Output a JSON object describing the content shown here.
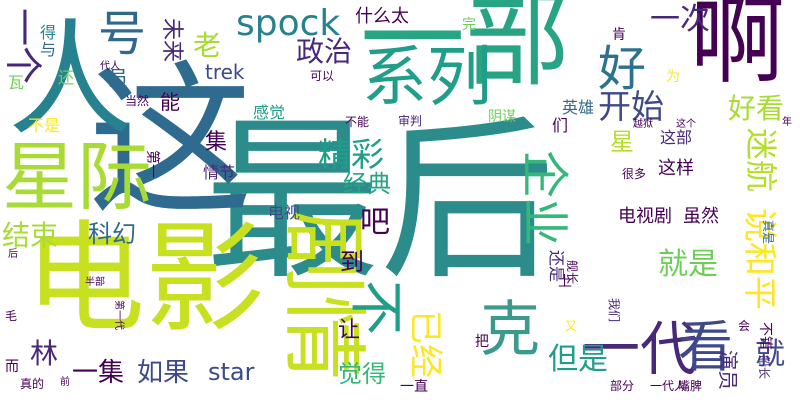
{
  "palette": {
    "background": "#ffffff",
    "colors": [
      "#440154",
      "#482878",
      "#3e4989",
      "#31688e",
      "#26828e",
      "#1f9e89",
      "#35b779",
      "#6ece58",
      "#b5de2b",
      "#fde725"
    ]
  },
  "words": [
    {
      "text": "最后",
      "weight": 100,
      "color": "#2c8c8c",
      "orientation": "horizontal"
    },
    {
      "text": "这",
      "weight": 95,
      "color": "#2f6b8f",
      "orientation": "horizontal"
    },
    {
      "text": "人",
      "weight": 90,
      "color": "#26828e",
      "orientation": "horizontal"
    },
    {
      "text": "电影",
      "weight": 85,
      "color": "#c7e020",
      "orientation": "horizontal"
    },
    {
      "text": "一部",
      "weight": 80,
      "color": "#26a484",
      "orientation": "horizontal"
    },
    {
      "text": "啊",
      "weight": 75,
      "color": "#440154",
      "orientation": "horizontal"
    },
    {
      "text": "星际",
      "weight": 70,
      "color": "#a8db34",
      "orientation": "horizontal"
    },
    {
      "text": "剧情",
      "weight": 68,
      "color": "#c7e020",
      "orientation": "vertical"
    },
    {
      "text": "系列",
      "weight": 62,
      "color": "#1f9e89",
      "orientation": "horizontal"
    },
    {
      "text": "一代",
      "weight": 56,
      "color": "#482878",
      "orientation": "horizontal"
    },
    {
      "text": "克",
      "weight": 55,
      "color": "#3b9a8c",
      "orientation": "horizontal"
    },
    {
      "text": "看",
      "weight": 52,
      "color": "#3e4989",
      "orientation": "horizontal"
    },
    {
      "text": "不",
      "weight": 50,
      "color": "#1f9e89",
      "orientation": "vertical"
    },
    {
      "text": "好",
      "weight": 48,
      "color": "#2c728e",
      "orientation": "horizontal"
    },
    {
      "text": "号",
      "weight": 46,
      "color": "#31688e",
      "orientation": "horizontal"
    },
    {
      "text": "企业",
      "weight": 44,
      "color": "#35b779",
      "orientation": "vertical"
    },
    {
      "text": "一个",
      "weight": 42,
      "color": "#482878",
      "orientation": "vertical"
    },
    {
      "text": "spock",
      "weight": 40,
      "color": "#26828e",
      "orientation": "horizontal"
    },
    {
      "text": "说和平",
      "weight": 38,
      "color": "#fde725",
      "orientation": "vertical"
    },
    {
      "text": "开始",
      "weight": 36,
      "color": "#3e4989",
      "orientation": "horizontal"
    },
    {
      "text": "已经",
      "weight": 36,
      "color": "#fde725",
      "orientation": "vertical"
    },
    {
      "text": "精彩",
      "weight": 34,
      "color": "#1f9e89",
      "orientation": "horizontal"
    },
    {
      "text": "就是",
      "weight": 34,
      "color": "#6ece58",
      "orientation": "horizontal"
    },
    {
      "text": "政治",
      "weight": 32,
      "color": "#482878",
      "orientation": "horizontal"
    },
    {
      "text": "结束",
      "weight": 32,
      "color": "#a8db34",
      "orientation": "horizontal"
    },
    {
      "text": "老",
      "weight": 32,
      "color": "#a8db34",
      "orientation": "horizontal"
    },
    {
      "text": "迷航",
      "weight": 32,
      "color": "#b5de2b",
      "orientation": "vertical"
    },
    {
      "text": "一次",
      "weight": 30,
      "color": "#482878",
      "orientation": "horizontal"
    },
    {
      "text": "好看",
      "weight": 30,
      "color": "#a8db34",
      "orientation": "horizontal"
    },
    {
      "text": "但是",
      "weight": 30,
      "color": "#1f9e89",
      "orientation": "horizontal"
    },
    {
      "text": "就",
      "weight": 30,
      "color": "#3e4989",
      "orientation": "horizontal"
    },
    {
      "text": "吧",
      "weight": 28,
      "color": "#440154",
      "orientation": "horizontal"
    },
    {
      "text": "林",
      "weight": 28,
      "color": "#482878",
      "orientation": "horizontal"
    },
    {
      "text": "科幻",
      "weight": 26,
      "color": "#31688e",
      "orientation": "horizontal"
    },
    {
      "text": "经典",
      "weight": 26,
      "color": "#26a484",
      "orientation": "horizontal"
    },
    {
      "text": "一集",
      "weight": 26,
      "color": "#440154",
      "orientation": "horizontal"
    },
    {
      "text": "如果",
      "weight": 26,
      "color": "#3e4989",
      "orientation": "horizontal"
    },
    {
      "text": "star",
      "weight": 26,
      "color": "#3e4989",
      "orientation": "horizontal"
    },
    {
      "text": "觉得",
      "weight": 26,
      "color": "#35b779",
      "orientation": "horizontal"
    },
    {
      "text": "星",
      "weight": 24,
      "color": "#b5de2b",
      "orientation": "horizontal"
    },
    {
      "text": "到",
      "weight": 24,
      "color": "#440154",
      "orientation": "horizontal"
    },
    {
      "text": "集",
      "weight": 24,
      "color": "#440154",
      "orientation": "horizontal"
    },
    {
      "text": "让",
      "weight": 22,
      "color": "#440154",
      "orientation": "horizontal"
    },
    {
      "text": "员",
      "weight": 22,
      "color": "#31688e",
      "orientation": "horizontal"
    },
    {
      "text": "能",
      "weight": 22,
      "color": "#440154",
      "orientation": "horizontal"
    },
    {
      "text": "什么太",
      "weight": 20,
      "color": "#440154",
      "orientation": "horizontal"
    },
    {
      "text": "trek",
      "weight": 20,
      "color": "#3e4989",
      "orientation": "horizontal"
    },
    {
      "text": "未来",
      "weight": 20,
      "color": "#482878",
      "orientation": "vertical"
    },
    {
      "text": "演员",
      "weight": 20,
      "color": "#482878",
      "orientation": "vertical"
    },
    {
      "text": "电视剧",
      "weight": 18,
      "color": "#440154",
      "orientation": "horizontal"
    },
    {
      "text": "虽然",
      "weight": 18,
      "color": "#440154",
      "orientation": "horizontal"
    },
    {
      "text": "这样",
      "weight": 18,
      "color": "#440154",
      "orientation": "horizontal"
    },
    {
      "text": "不是",
      "weight": 16,
      "color": "#fde725",
      "orientation": "horizontal"
    },
    {
      "text": "感觉",
      "weight": 16,
      "color": "#1f9e89",
      "orientation": "horizontal"
    },
    {
      "text": "英雄",
      "weight": 16,
      "color": "#31688e",
      "orientation": "horizontal"
    },
    {
      "text": "情节",
      "weight": 16,
      "color": "#482878",
      "orientation": "horizontal"
    },
    {
      "text": "电视",
      "weight": 16,
      "color": "#3e4989",
      "orientation": "horizontal"
    },
    {
      "text": "这部",
      "weight": 16,
      "color": "#482878",
      "orientation": "horizontal"
    },
    {
      "text": "为",
      "weight": 16,
      "color": "#fde725",
      "orientation": "horizontal"
    },
    {
      "text": "完",
      "weight": 16,
      "color": "#6ece58",
      "orientation": "horizontal"
    },
    {
      "text": "得",
      "weight": 16,
      "color": "#26828e",
      "orientation": "horizontal"
    },
    {
      "text": "与",
      "weight": 16,
      "color": "#31688e",
      "orientation": "horizontal"
    },
    {
      "text": "还",
      "weight": 16,
      "color": "#6ece58",
      "orientation": "horizontal"
    },
    {
      "text": "瓦",
      "weight": 16,
      "color": "#6ece58",
      "orientation": "horizontal"
    },
    {
      "text": "们",
      "weight": 16,
      "color": "#440154",
      "orientation": "horizontal"
    },
    {
      "text": "还是",
      "weight": 16,
      "color": "#482878",
      "orientation": "vertical"
    },
    {
      "text": "上",
      "weight": 16,
      "color": "#440154",
      "orientation": "horizontal"
    },
    {
      "text": "把",
      "weight": 16,
      "color": "#440154",
      "orientation": "horizontal"
    },
    {
      "text": "一直",
      "weight": 16,
      "color": "#440154",
      "orientation": "horizontal"
    },
    {
      "text": "而",
      "weight": 16,
      "color": "#440154",
      "orientation": "horizontal"
    },
    {
      "text": "不错",
      "weight": 16,
      "color": "#440154",
      "orientation": "vertical"
    },
    {
      "text": "第一",
      "weight": 16,
      "color": "#440154",
      "orientation": "vertical"
    },
    {
      "text": "肯",
      "weight": 16,
      "color": "#440154",
      "orientation": "horizontal"
    },
    {
      "text": "阴谋",
      "weight": 14,
      "color": "#6ece58",
      "orientation": "horizontal"
    },
    {
      "text": "审判",
      "weight": 12,
      "color": "#482878",
      "orientation": "horizontal"
    },
    {
      "text": "不能",
      "weight": 12,
      "color": "#440154",
      "orientation": "horizontal"
    },
    {
      "text": "很多",
      "weight": 12,
      "color": "#440154",
      "orientation": "horizontal"
    },
    {
      "text": "可以",
      "weight": 12,
      "color": "#440154",
      "orientation": "horizontal"
    },
    {
      "text": "当然",
      "weight": 12,
      "color": "#440154",
      "orientation": "horizontal"
    },
    {
      "text": "真是",
      "weight": 12,
      "color": "#31688e",
      "orientation": "vertical"
    },
    {
      "text": "又",
      "weight": 12,
      "color": "#fde725",
      "orientation": "horizontal"
    },
    {
      "text": "我们",
      "weight": 12,
      "color": "#482878",
      "orientation": "vertical"
    },
    {
      "text": "会",
      "weight": 12,
      "color": "#440154",
      "orientation": "horizontal"
    },
    {
      "text": "毛",
      "weight": 12,
      "color": "#440154",
      "orientation": "horizontal"
    },
    {
      "text": "真的",
      "weight": 12,
      "color": "#440154",
      "orientation": "horizontal"
    },
    {
      "text": "船长",
      "weight": 12,
      "color": "#482878",
      "orientation": "vertical"
    },
    {
      "text": "舰长",
      "weight": 12,
      "color": "#440154",
      "orientation": "vertical"
    },
    {
      "text": "部分",
      "weight": 12,
      "color": "#440154",
      "orientation": "horizontal"
    },
    {
      "text": "一代人",
      "weight": 10,
      "color": "#440154",
      "orientation": "horizontal"
    },
    {
      "text": "嘴脾",
      "weight": 10,
      "color": "#440154",
      "orientation": "horizontal"
    },
    {
      "text": "越狱",
      "weight": 10,
      "color": "#440154",
      "orientation": "horizontal"
    },
    {
      "text": "这个",
      "weight": 10,
      "color": "#440154",
      "orientation": "horizontal"
    },
    {
      "text": "代人",
      "weight": 10,
      "color": "#440154",
      "orientation": "horizontal"
    },
    {
      "text": "半部",
      "weight": 10,
      "color": "#440154",
      "orientation": "horizontal"
    },
    {
      "text": "后",
      "weight": 10,
      "color": "#440154",
      "orientation": "horizontal"
    },
    {
      "text": "前",
      "weight": 10,
      "color": "#440154",
      "orientation": "horizontal"
    },
    {
      "text": "第一代",
      "weight": 10,
      "color": "#440154",
      "orientation": "vertical"
    },
    {
      "text": "年",
      "weight": 10,
      "color": "#440154",
      "orientation": "horizontal"
    }
  ]
}
